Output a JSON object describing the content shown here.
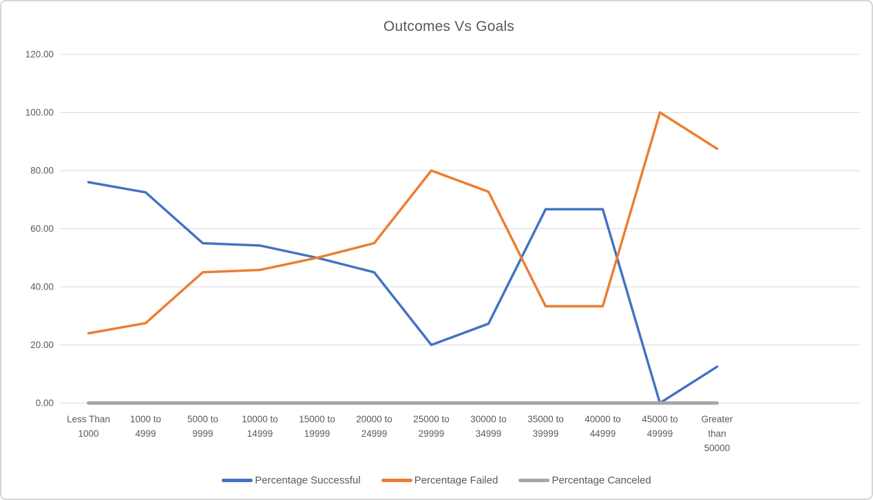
{
  "chart_data": {
    "type": "line",
    "title": "Outcomes Vs Goals",
    "categories": [
      "Less Than\n1000",
      "1000 to\n4999",
      "5000 to\n9999",
      "10000 to\n14999",
      "15000 to\n19999",
      "20000 to\n24999",
      "25000 to\n29999",
      "30000 to\n34999",
      "35000 to\n39999",
      "40000 to\n44999",
      "45000 to\n49999",
      "Greater\nthan\n50000"
    ],
    "series": [
      {
        "name": "Percentage Successful",
        "color": "#4472C4",
        "values": [
          76.0,
          72.5,
          55.0,
          54.2,
          50.0,
          45.0,
          20.0,
          27.3,
          66.7,
          66.7,
          0.0,
          12.5
        ]
      },
      {
        "name": "Percentage Failed",
        "color": "#ED7D31",
        "values": [
          24.0,
          27.5,
          45.0,
          45.8,
          50.0,
          55.0,
          80.0,
          72.7,
          33.3,
          33.3,
          100.0,
          87.5
        ]
      },
      {
        "name": "Percentage Canceled",
        "color": "#A5A5A5",
        "values": [
          0.0,
          0.0,
          0.0,
          0.0,
          0.0,
          0.0,
          0.0,
          0.0,
          0.0,
          0.0,
          0.0,
          0.0
        ]
      }
    ],
    "xlabel": "",
    "ylabel": "",
    "ylim": [
      0,
      120
    ],
    "yticks": [
      0,
      20,
      40,
      60,
      80,
      100,
      120
    ],
    "ytick_labels": [
      "0.00",
      "20.00",
      "40.00",
      "60.00",
      "80.00",
      "100.00",
      "120.00"
    ],
    "grid": true,
    "legend_position": "bottom",
    "colors": {
      "gridline": "#D9D9D9",
      "axis_text": "#595959",
      "title_text": "#595959",
      "background": "#FFFFFF",
      "window_border": "#D6D6D6"
    }
  }
}
